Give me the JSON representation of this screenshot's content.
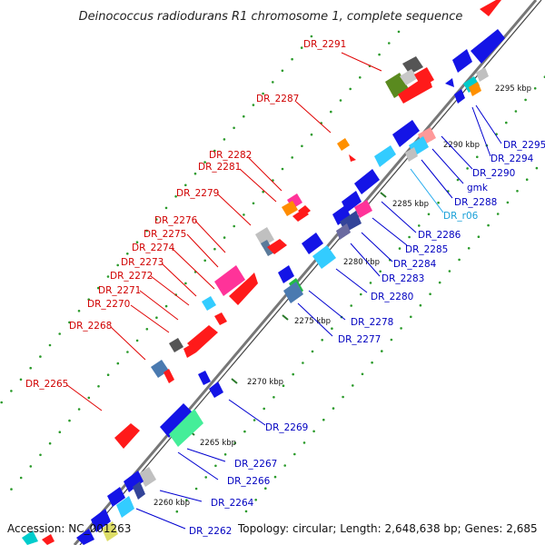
{
  "title": "Deinococcus radiodurans R1 chromosome 1, complete sequence",
  "footer": {
    "accession": "Accession: NC_001263",
    "topology": "Topology: circular; Length: 2,648,638 bp; Genes: 2,685"
  },
  "colors": {
    "forward": "#ff1a1a",
    "reverse": "#1414e6",
    "leader_forward": "#e00000",
    "leader_reverse": "#0000d0",
    "leader_rna": "#22aaee",
    "backbone": "#777777",
    "tick": "#2a7a2a"
  },
  "kbp_ticks": [
    {
      "label": "2260 kbp"
    },
    {
      "label": "2265 kbp"
    },
    {
      "label": "2270 kbp"
    },
    {
      "label": "2275 kbp"
    },
    {
      "label": "2280 kbp"
    },
    {
      "label": "2285 kbp"
    },
    {
      "label": "2290 kbp"
    },
    {
      "label": "2295 kbp"
    }
  ],
  "forward_labels": [
    {
      "text": "DR_2291",
      "color": "red"
    },
    {
      "text": "DR_2287",
      "color": "red"
    },
    {
      "text": "DR_2282",
      "color": "red"
    },
    {
      "text": "DR_2281",
      "color": "red"
    },
    {
      "text": "DR_2279",
      "color": "red"
    },
    {
      "text": "DR_2276",
      "color": "red"
    },
    {
      "text": "DR_2275",
      "color": "red"
    },
    {
      "text": "DR_2274",
      "color": "red"
    },
    {
      "text": "DR_2273",
      "color": "red"
    },
    {
      "text": "DR_2272",
      "color": "red"
    },
    {
      "text": "DR_2271",
      "color": "red"
    },
    {
      "text": "DR_2270",
      "color": "red"
    },
    {
      "text": "DR_2268",
      "color": "red"
    },
    {
      "text": "DR_2265",
      "color": "red"
    }
  ],
  "reverse_labels": [
    {
      "text": "DR_2295",
      "color": "blue"
    },
    {
      "text": "DR_2294",
      "color": "blue"
    },
    {
      "text": "DR_2290",
      "color": "blue"
    },
    {
      "text": "gmk",
      "color": "blue"
    },
    {
      "text": "DR_2288",
      "color": "blue"
    },
    {
      "text": "DR_r06",
      "color": "cyan"
    },
    {
      "text": "DR_2286",
      "color": "blue"
    },
    {
      "text": "DR_2285",
      "color": "blue"
    },
    {
      "text": "DR_2284",
      "color": "blue"
    },
    {
      "text": "DR_2283",
      "color": "blue"
    },
    {
      "text": "DR_2280",
      "color": "blue"
    },
    {
      "text": "DR_2278",
      "color": "blue"
    },
    {
      "text": "DR_2277",
      "color": "blue"
    },
    {
      "text": "DR_2269",
      "color": "blue"
    },
    {
      "text": "DR_2267",
      "color": "blue"
    },
    {
      "text": "DR_2266",
      "color": "blue"
    },
    {
      "text": "DR_2264",
      "color": "blue"
    },
    {
      "text": "DR_2262",
      "color": "blue"
    }
  ]
}
